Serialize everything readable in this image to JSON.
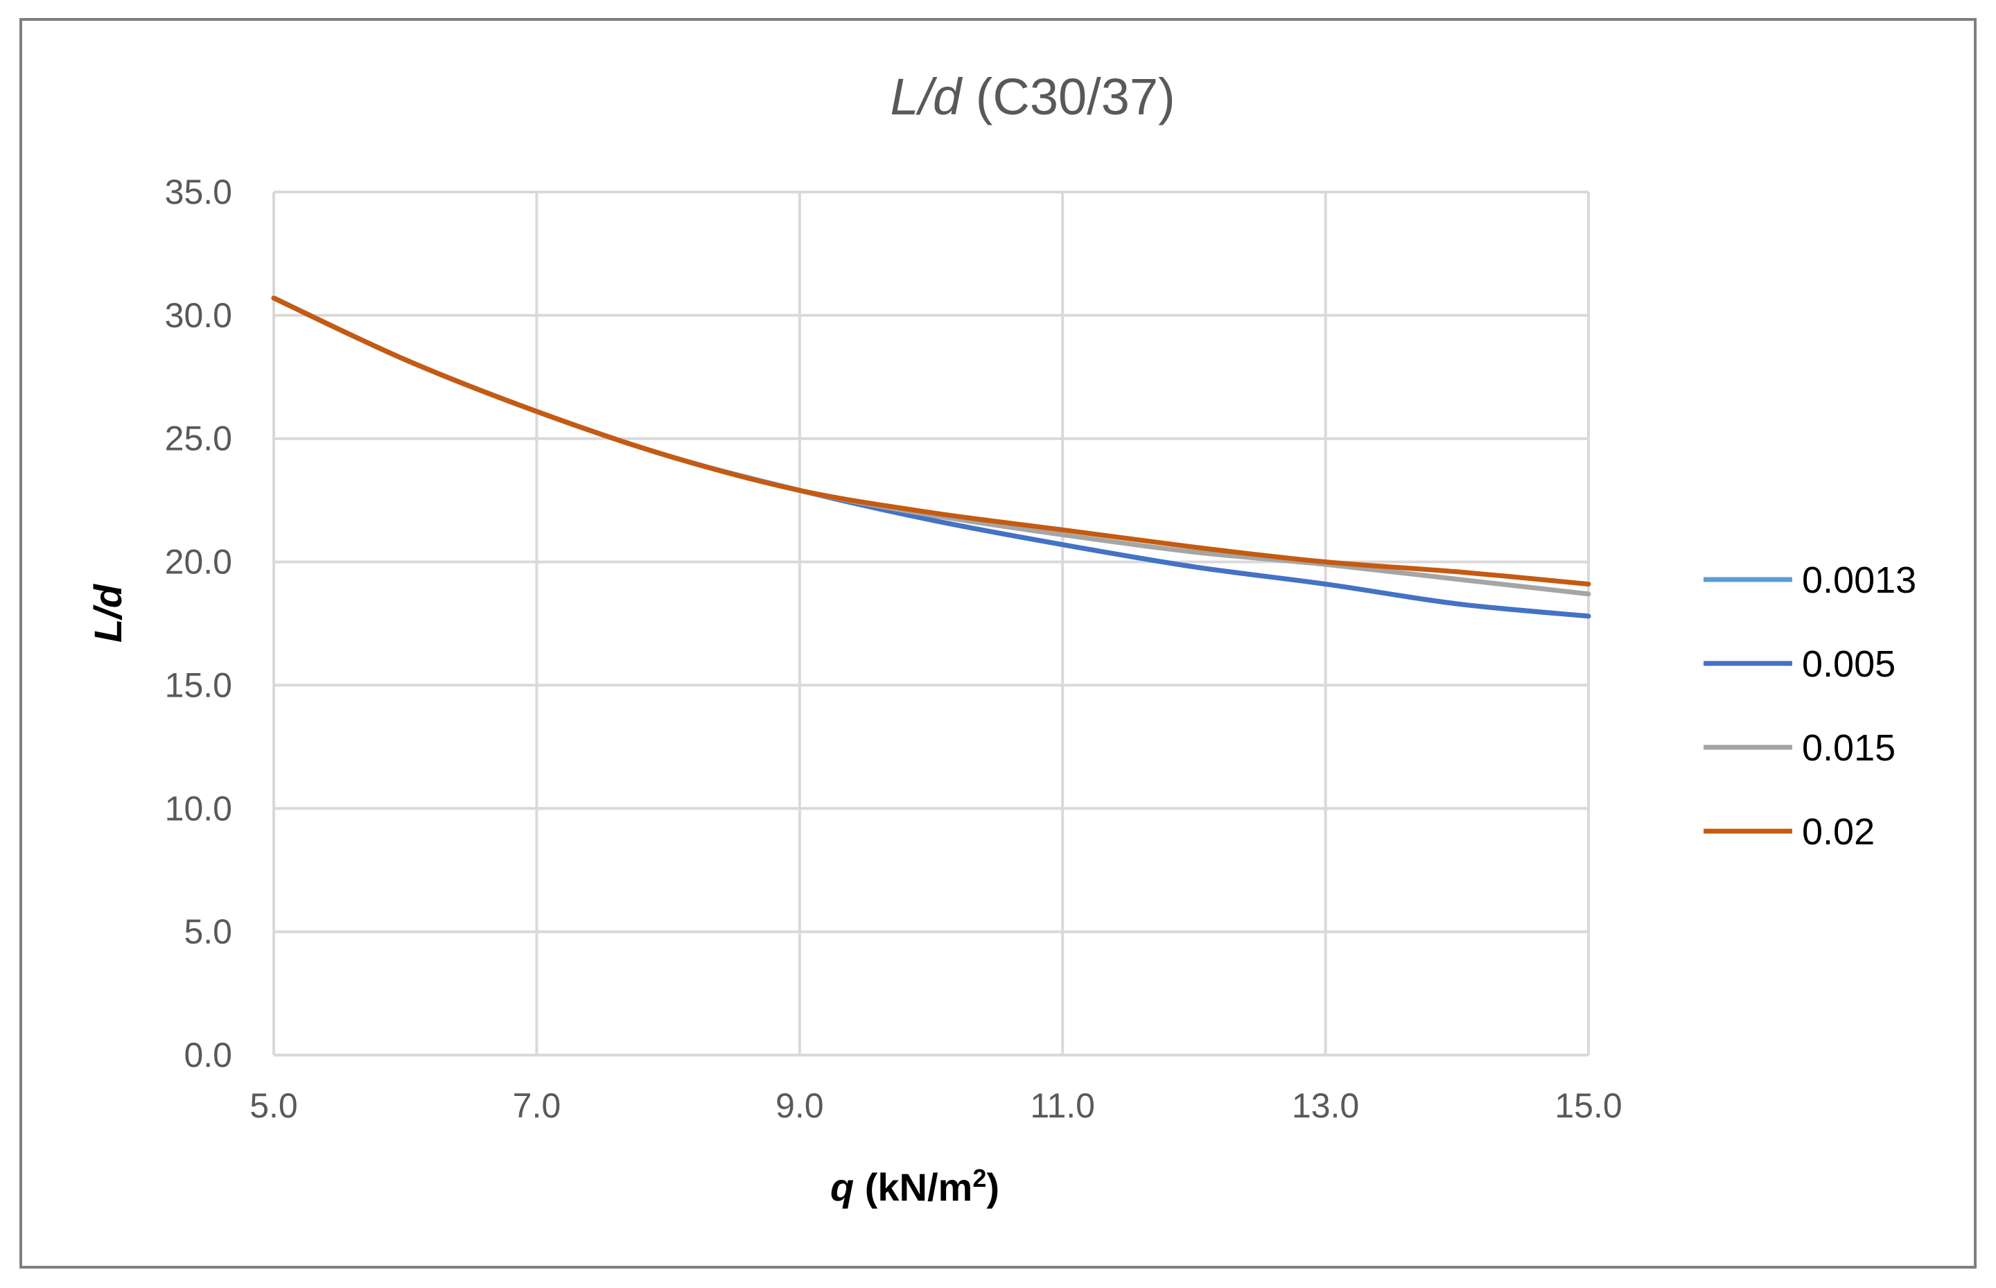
{
  "chart_data": {
    "type": "line",
    "title_var": "L/d",
    "title_rest": " (C30/37)",
    "xlabel_var": "q",
    "xlabel_rest": " (kN/m",
    "xlabel_sup": "2",
    "xlabel_close": ")",
    "ylabel": "L/d",
    "xlim": [
      5.0,
      15.0
    ],
    "ylim": [
      0.0,
      35.0
    ],
    "xticks": [
      5.0,
      7.0,
      9.0,
      11.0,
      13.0,
      15.0
    ],
    "xtick_labels": [
      "5.0",
      "7.0",
      "9.0",
      "11.0",
      "13.0",
      "15.0"
    ],
    "yticks": [
      0.0,
      5.0,
      10.0,
      15.0,
      20.0,
      25.0,
      30.0,
      35.0
    ],
    "ytick_labels": [
      "0.0",
      "5.0",
      "10.0",
      "15.0",
      "20.0",
      "25.0",
      "30.0",
      "35.0"
    ],
    "grid": true,
    "legend_position": "right",
    "x": [
      5,
      6,
      7,
      8,
      9,
      10,
      11,
      12,
      13,
      14,
      15
    ],
    "series": [
      {
        "name": "0.0013",
        "color": "#5b9bd5",
        "values": [
          30.7,
          28.2,
          26.1,
          24.3,
          22.9,
          21.7,
          20.7,
          19.8,
          19.1,
          18.3,
          17.8
        ]
      },
      {
        "name": "0.005",
        "color": "#4472c4",
        "values": [
          30.7,
          28.2,
          26.1,
          24.3,
          22.9,
          21.7,
          20.7,
          19.8,
          19.1,
          18.3,
          17.8
        ]
      },
      {
        "name": "0.015",
        "color": "#a5a5a5",
        "values": [
          30.7,
          28.2,
          26.1,
          24.3,
          22.9,
          21.9,
          21.1,
          20.4,
          19.9,
          19.3,
          18.7
        ]
      },
      {
        "name": "0.02",
        "color": "#c55a11",
        "values": [
          30.7,
          28.2,
          26.1,
          24.3,
          22.9,
          22.0,
          21.3,
          20.6,
          20.0,
          19.6,
          19.1
        ]
      }
    ]
  }
}
